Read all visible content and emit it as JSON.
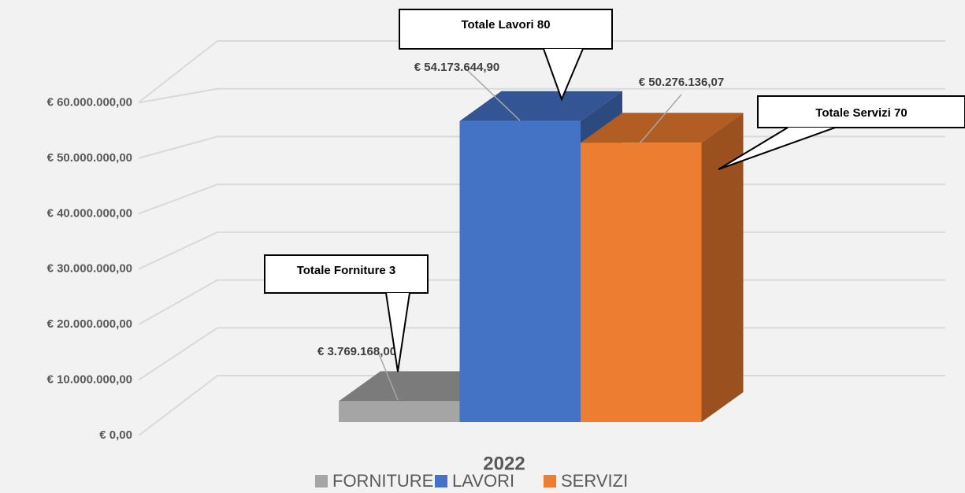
{
  "chart_data": {
    "type": "bar3d",
    "categories": [
      "2022"
    ],
    "series": [
      {
        "name": "FORNITURE",
        "color": "#a5a5a5",
        "values": [
          3769168.0
        ],
        "value_labels": [
          "€ 3.769.168,00"
        ]
      },
      {
        "name": "LAVORI",
        "color": "#4472c4",
        "values": [
          54173644.9
        ],
        "value_labels": [
          "€ 54.173.644,90"
        ]
      },
      {
        "name": "SERVIZI",
        "color": "#ed7d31",
        "values": [
          50276136.07
        ],
        "value_labels": [
          "€ 50.276.136,07"
        ]
      }
    ],
    "ylim": [
      0,
      70000000
    ],
    "yticks": [
      {
        "value": 0,
        "label": "€ 0,00"
      },
      {
        "value": 10000000,
        "label": "€ 10.000.000,00"
      },
      {
        "value": 20000000,
        "label": "€ 20.000.000,00"
      },
      {
        "value": 30000000,
        "label": "€ 30.000.000,00"
      },
      {
        "value": 40000000,
        "label": "€ 40.000.000,00"
      },
      {
        "value": 50000000,
        "label": "€ 50.000.000,00"
      },
      {
        "value": 60000000,
        "label": "€ 60.000.000,00"
      }
    ],
    "grid": true,
    "legend": "bottom",
    "annotations": [
      "Totale Lavori 80",
      "Totale Servizi 70",
      "Totale Forniture 3"
    ]
  }
}
